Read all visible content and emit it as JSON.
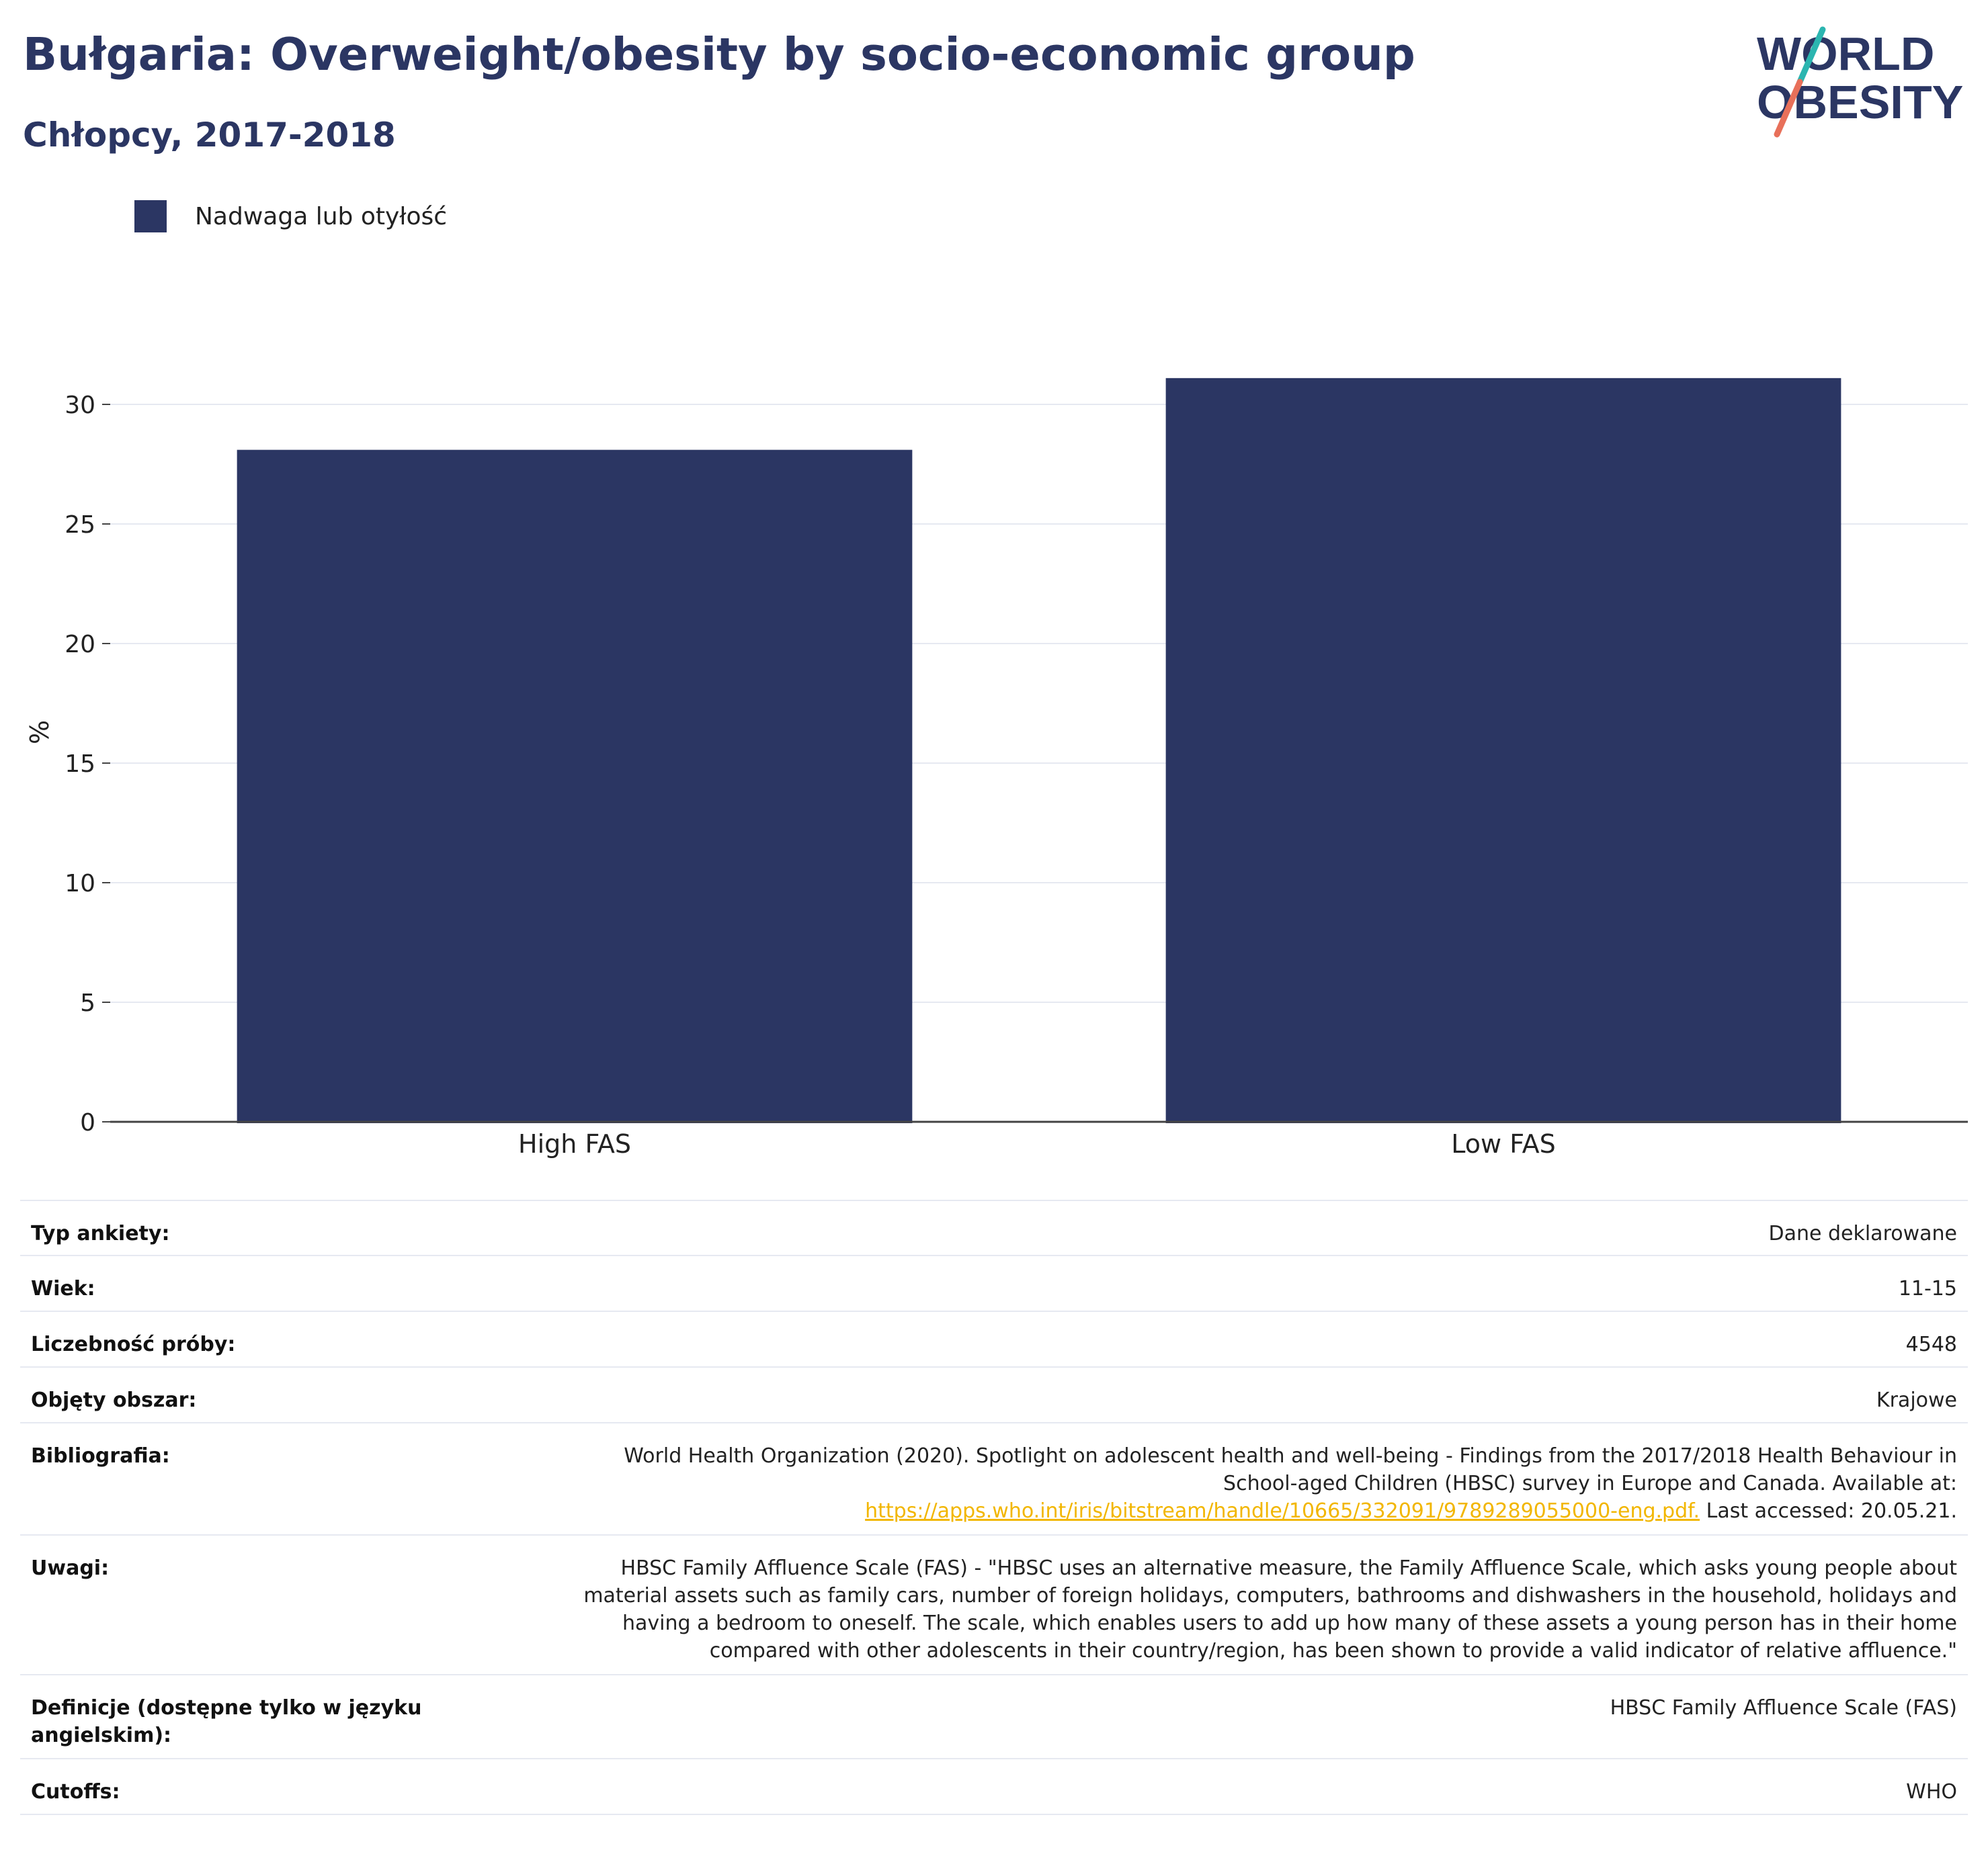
{
  "header": {
    "title": "Bułgaria: Overweight/obesity by socio-economic group",
    "subtitle": "Chłopcy, 2017-2018",
    "logo_line1": "WORLD",
    "logo_line2": "OBESITY"
  },
  "legend": {
    "label": "Nadwaga lub otyłość"
  },
  "colors": {
    "bar": "#2b3663",
    "title": "#2b3663",
    "logo_teal": "#2bb5b0",
    "logo_coral": "#e8705a",
    "link": "#f2b600",
    "grid": "#e6e9f1"
  },
  "chart_data": {
    "type": "bar",
    "categories": [
      "High FAS",
      "Low FAS"
    ],
    "series": [
      {
        "name": "Nadwaga lub otyłość",
        "values": [
          28.1,
          31.1
        ]
      }
    ],
    "ylabel": "%",
    "xlabel": "",
    "ylim": [
      0,
      30
    ],
    "yticks": [
      0,
      5,
      10,
      15,
      20,
      25,
      30
    ],
    "grid": true,
    "legend_position": "top-left"
  },
  "meta": {
    "survey_type": {
      "label": "Typ ankiety:",
      "value": "Dane deklarowane"
    },
    "age": {
      "label": "Wiek:",
      "value": "11-15"
    },
    "sample_size": {
      "label": "Liczebność próby:",
      "value": "4548"
    },
    "area": {
      "label": "Objęty obszar:",
      "value": "Krajowe"
    },
    "bibliography": {
      "label": "Bibliografia:",
      "line1": "World Health Organization (2020). Spotlight on adolescent health and well-being - Findings from the 2017/2018 Health Behaviour in",
      "line2": "School-aged Children (HBSC) survey in Europe and Canada. Available at:",
      "link": "https://apps.who.int/iris/bitstream/handle/10665/332091/9789289055000-eng.pdf.",
      "after_link": " Last accessed: 20.05.21."
    },
    "notes": {
      "label": "Uwagi:",
      "line1": "HBSC Family Affluence Scale (FAS) - \"HBSC uses an alternative measure, the Family Affluence Scale, which asks young people about",
      "line2": "material assets such as family cars, number of foreign holidays, computers, bathrooms and dishwashers in the household, holidays and",
      "line3": "having a bedroom to oneself. The scale, which enables users to add up how many of these assets a young person has in their home",
      "line4": "compared with other adolescents in their country/region, has been shown to provide a valid indicator of relative affluence.\""
    },
    "definitions": {
      "label_line1": "Definicje (dostępne tylko w języku",
      "label_line2": "angielskim):",
      "value": "HBSC Family Affluence Scale (FAS)"
    },
    "cutoffs": {
      "label": "Cutoffs:",
      "value": "WHO"
    }
  }
}
